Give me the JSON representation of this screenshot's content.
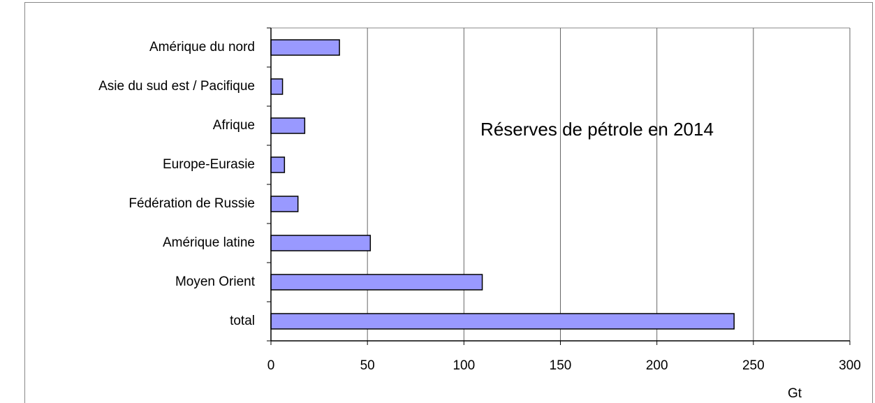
{
  "chart_data": {
    "type": "barh",
    "title": "Réserves de pétrole en 2014",
    "x_label": "Gt",
    "categories": [
      "Amérique du nord",
      "Asie du sud est / Pacifique",
      "Afrique",
      "Europe-Eurasie",
      "Fédération de Russie",
      "Amérique latine",
      "Moyen Orient",
      "total"
    ],
    "values": [
      35.5,
      6,
      17.5,
      7,
      14,
      51.5,
      109.5,
      240
    ],
    "color": "#9999ff",
    "xlim": [
      0,
      300
    ],
    "xticks": [
      0,
      50,
      100,
      150,
      200,
      250,
      300
    ],
    "grid": true
  }
}
